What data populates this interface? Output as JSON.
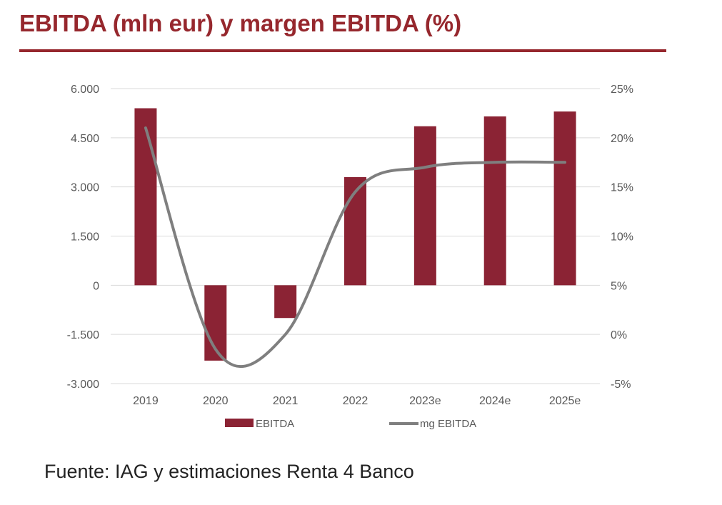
{
  "title": "EBITDA (mln eur) y margen EBITDA (%)",
  "source": "Fuente: IAG y estimaciones Renta 4 Banco",
  "colors": {
    "accent": "#96272d",
    "bar": "#8b2334",
    "line": "#7f7f7f",
    "grid": "#d9d9d9",
    "tick": "#595959"
  },
  "chart_data": {
    "type": "bar",
    "categories": [
      "2019",
      "2020",
      "2021",
      "2022",
      "2023e",
      "2024e",
      "2025e"
    ],
    "series": [
      {
        "name": "EBITDA",
        "type": "bar",
        "axis": "left",
        "values": [
          5400,
          -2300,
          -1000,
          3300,
          4850,
          5150,
          5300
        ]
      },
      {
        "name": "mg EBITDA",
        "type": "line",
        "axis": "right",
        "smooth": true,
        "values": [
          21,
          -1.5,
          0,
          14.5,
          17,
          17.5,
          17.5
        ]
      }
    ],
    "y_left": {
      "min": -3000,
      "max": 6000,
      "ticks": [
        "6.000",
        "4.500",
        "3.000",
        "1.500",
        "0",
        "-1.500",
        "-3.000"
      ],
      "tick_values": [
        6000,
        4500,
        3000,
        1500,
        0,
        -1500,
        -3000
      ]
    },
    "y_right": {
      "min": -5,
      "max": 25,
      "ticks": [
        "25%",
        "20%",
        "15%",
        "10%",
        "5%",
        "0%",
        "-5%"
      ],
      "tick_values": [
        25,
        20,
        15,
        10,
        5,
        0,
        -5
      ]
    },
    "legend": {
      "position": "bottom",
      "items": [
        "EBITDA",
        "mg EBITDA"
      ]
    },
    "grid": true
  }
}
